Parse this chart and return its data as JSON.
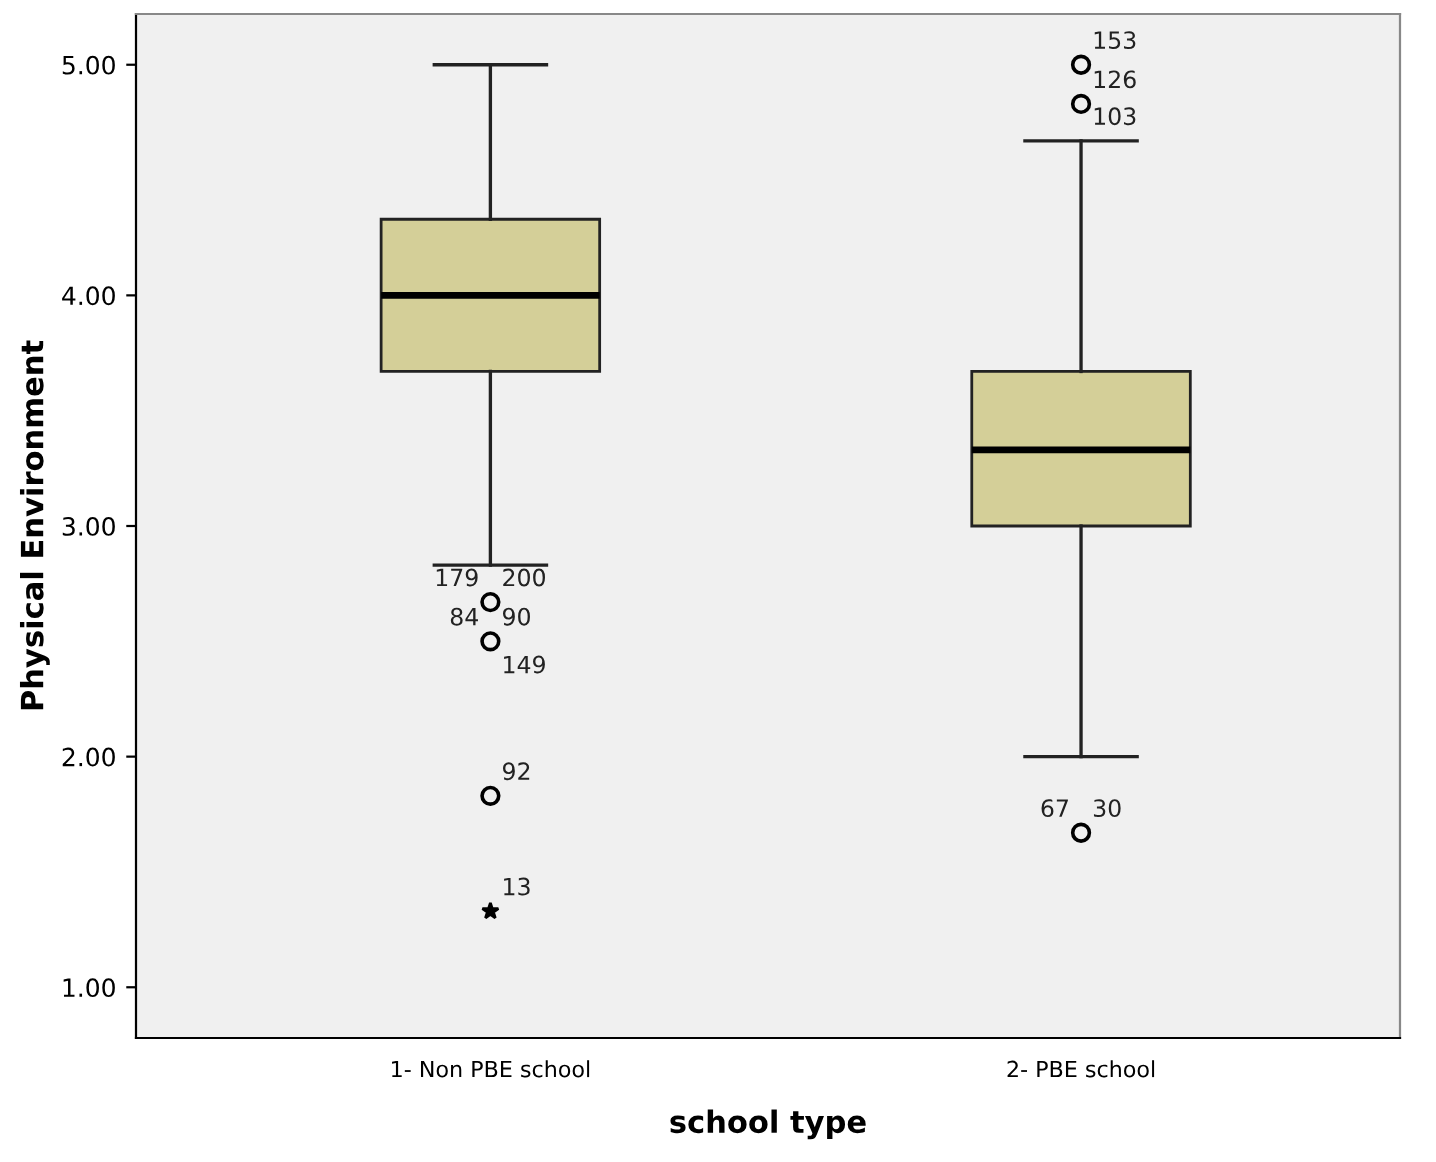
{
  "chart_data": {
    "type": "box",
    "xlabel": "school type",
    "ylabel": "Physical Environment",
    "categories": [
      "1- Non PBE school",
      "2- PBE school"
    ],
    "boxes": [
      {
        "low": 2.83,
        "q1": 3.67,
        "median": 4.0,
        "q3": 4.33,
        "high": 5.0,
        "outliers": [
          2.67,
          2.5,
          1.83,
          1.33
        ]
      },
      {
        "low": 2.0,
        "q1": 3.0,
        "median": 3.33,
        "q3": 3.67,
        "high": 4.67,
        "outliers": [
          5.0,
          4.83,
          1.67
        ]
      }
    ],
    "color": "#d4cf98",
    "ylim": [
      0.78,
      5.22
    ],
    "yticks": [
      {
        "value": 1,
        "label": "1.00"
      },
      {
        "value": 2,
        "label": "2.00"
      },
      {
        "value": 3,
        "label": "3.00"
      },
      {
        "value": 4,
        "label": "4.00"
      },
      {
        "value": 5,
        "label": "5.00"
      }
    ],
    "grid": false,
    "annotations": [
      "200",
      "179",
      "90",
      "84",
      "149",
      "92",
      "13",
      "153",
      "126",
      "103",
      "30",
      "67"
    ]
  }
}
